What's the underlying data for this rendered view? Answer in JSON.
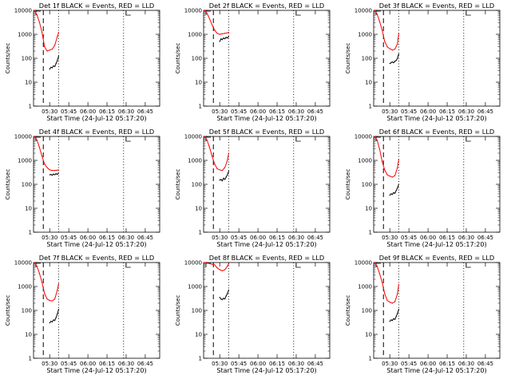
{
  "page": {
    "xlabel": "Start Time (24-Jul-12 05:17:20)",
    "ylabel": "Counts/sec",
    "title_suffix": "BLACK = Events, RED = LLD",
    "xticks": [
      "05:30",
      "05:45",
      "06:00",
      "06:15",
      "06:30",
      "06:45"
    ],
    "yticks": [
      "1",
      "10",
      "100",
      "1000",
      "10000"
    ]
  },
  "colors": {
    "events": "#000000",
    "lld": "#ff0000",
    "axes": "#000000"
  },
  "chart_data": [
    {
      "type": "line",
      "panel": "Det 1f",
      "title": "Det 1f BLACK = Events, RED = LLD",
      "xlabel": "Start Time (24-Jul-12 05:17:20)",
      "ylabel": "Counts/sec",
      "x_ticks": [
        "05:30",
        "05:45",
        "06:00",
        "06:15",
        "06:30",
        "06:45"
      ],
      "y_scale": "log",
      "ylim": [
        1,
        10000
      ],
      "series": [
        {
          "name": "LLD",
          "x": [
            "05:18",
            "05:20",
            "05:22",
            "05:24",
            "05:26",
            "05:28",
            "05:30",
            "05:32",
            "05:34",
            "05:36",
            "05:37"
          ],
          "values": [
            10000,
            6500,
            3200,
            1200,
            300,
            200,
            220,
            240,
            350,
            800,
            1200
          ]
        },
        {
          "name": "Events",
          "x": [
            "05:30",
            "05:31",
            "05:32",
            "05:33",
            "05:34",
            "05:35",
            "05:36",
            "05:37"
          ],
          "values": [
            35,
            42,
            40,
            48,
            45,
            60,
            80,
            120
          ]
        }
      ],
      "dashed_line_x": "05:25",
      "dotted_lines_x": [
        "05:37",
        "06:28"
      ]
    },
    {
      "type": "line",
      "panel": "Det 2f",
      "title": "Det 2f BLACK = Events, RED = LLD",
      "xlabel": "Start Time (24-Jul-12 05:17:20)",
      "ylabel": "Counts/sec",
      "x_ticks": [
        "05:30",
        "05:45",
        "06:00",
        "06:15",
        "06:30",
        "06:45"
      ],
      "y_scale": "log",
      "ylim": [
        1,
        10000
      ],
      "series": [
        {
          "name": "LLD",
          "x": [
            "05:18",
            "05:20",
            "05:22",
            "05:24",
            "05:26",
            "05:28",
            "05:30",
            "05:32",
            "05:34",
            "05:36",
            "05:37"
          ],
          "values": [
            10000,
            7500,
            4500,
            2500,
            1500,
            1100,
            1000,
            1050,
            1100,
            1150,
            1200
          ]
        },
        {
          "name": "Events",
          "x": [
            "05:30",
            "05:31",
            "05:32",
            "05:33",
            "05:34",
            "05:35",
            "05:36",
            "05:37"
          ],
          "values": [
            500,
            650,
            600,
            700,
            650,
            750,
            700,
            800
          ]
        }
      ],
      "dashed_line_x": "05:25",
      "dotted_lines_x": [
        "05:37",
        "06:28"
      ]
    },
    {
      "type": "line",
      "panel": "Det 3f",
      "title": "Det 3f BLACK = Events, RED = LLD",
      "xlabel": "Start Time (24-Jul-12 05:17:20)",
      "ylabel": "Counts/sec",
      "x_ticks": [
        "05:30",
        "05:45",
        "06:00",
        "06:15",
        "06:30",
        "06:45"
      ],
      "y_scale": "log",
      "ylim": [
        1,
        10000
      ],
      "series": [
        {
          "name": "LLD",
          "x": [
            "05:18",
            "05:20",
            "05:22",
            "05:24",
            "05:26",
            "05:28",
            "05:30",
            "05:32",
            "05:34",
            "05:36",
            "05:37"
          ],
          "values": [
            10000,
            7000,
            3500,
            1500,
            500,
            300,
            250,
            220,
            240,
            400,
            1100
          ]
        },
        {
          "name": "Events",
          "x": [
            "05:30",
            "05:31",
            "05:32",
            "05:33",
            "05:34",
            "05:35",
            "05:36",
            "05:37"
          ],
          "values": [
            60,
            65,
            70,
            65,
            75,
            80,
            100,
            150
          ]
        }
      ],
      "dashed_line_x": "05:25",
      "dotted_lines_x": [
        "05:37",
        "06:28"
      ]
    },
    {
      "type": "line",
      "panel": "Det 4f",
      "title": "Det 4f BLACK = Events, RED = LLD",
      "xlabel": "Start Time (24-Jul-12 05:17:20)",
      "ylabel": "Counts/sec",
      "x_ticks": [
        "05:30",
        "05:45",
        "06:00",
        "06:15",
        "06:30",
        "06:45"
      ],
      "y_scale": "log",
      "ylim": [
        1,
        10000
      ],
      "series": [
        {
          "name": "LLD",
          "x": [
            "05:18",
            "05:20",
            "05:22",
            "05:24",
            "05:26",
            "05:28",
            "05:30",
            "05:32",
            "05:34",
            "05:36",
            "05:37"
          ],
          "values": [
            10000,
            7000,
            3500,
            1500,
            700,
            500,
            400,
            380,
            380,
            390,
            400
          ]
        },
        {
          "name": "Events",
          "x": [
            "05:30",
            "05:31",
            "05:32",
            "05:33",
            "05:34",
            "05:35",
            "05:36",
            "05:37"
          ],
          "values": [
            250,
            260,
            240,
            270,
            250,
            280,
            260,
            300
          ]
        }
      ],
      "dashed_line_x": "05:25",
      "dotted_lines_x": [
        "05:37",
        "06:28"
      ]
    },
    {
      "type": "line",
      "panel": "Det 5f",
      "title": "Det 5f BLACK = Events, RED = LLD",
      "xlabel": "Start Time (24-Jul-12 05:17:20)",
      "ylabel": "Counts/sec",
      "x_ticks": [
        "05:30",
        "05:45",
        "06:00",
        "06:15",
        "06:30",
        "06:45"
      ],
      "y_scale": "log",
      "ylim": [
        1,
        10000
      ],
      "series": [
        {
          "name": "LLD",
          "x": [
            "05:18",
            "05:20",
            "05:22",
            "05:24",
            "05:26",
            "05:28",
            "05:30",
            "05:32",
            "05:34",
            "05:36",
            "05:37"
          ],
          "values": [
            10000,
            7000,
            3500,
            1500,
            700,
            450,
            400,
            380,
            500,
            1000,
            2000
          ]
        },
        {
          "name": "Events",
          "x": [
            "05:30",
            "05:31",
            "05:32",
            "05:33",
            "05:34",
            "05:35",
            "05:36",
            "05:37"
          ],
          "values": [
            150,
            160,
            140,
            180,
            160,
            200,
            250,
            350
          ]
        }
      ],
      "dashed_line_x": "05:25",
      "dotted_lines_x": [
        "05:37",
        "06:28"
      ]
    },
    {
      "type": "line",
      "panel": "Det 6f",
      "title": "Det 6f BLACK = Events, RED = LLD",
      "xlabel": "Start Time (24-Jul-12 05:17:20)",
      "ylabel": "Counts/sec",
      "x_ticks": [
        "05:30",
        "05:45",
        "06:00",
        "06:15",
        "06:30",
        "06:45"
      ],
      "y_scale": "log",
      "ylim": [
        1,
        10000
      ],
      "series": [
        {
          "name": "LLD",
          "x": [
            "05:18",
            "05:20",
            "05:22",
            "05:24",
            "05:26",
            "05:28",
            "05:30",
            "05:32",
            "05:34",
            "05:36",
            "05:37"
          ],
          "values": [
            10000,
            7000,
            3000,
            900,
            400,
            250,
            220,
            200,
            230,
            500,
            1100
          ]
        },
        {
          "name": "Events",
          "x": [
            "05:30",
            "05:31",
            "05:32",
            "05:33",
            "05:34",
            "05:35",
            "05:36",
            "05:37"
          ],
          "values": [
            35,
            40,
            38,
            45,
            42,
            55,
            70,
            100
          ]
        }
      ],
      "dashed_line_x": "05:25",
      "dotted_lines_x": [
        "05:37",
        "06:28"
      ]
    },
    {
      "type": "line",
      "panel": "Det 7f",
      "title": "Det 7f BLACK = Events, RED = LLD",
      "xlabel": "Start Time (24-Jul-12 05:17:20)",
      "ylabel": "Counts/sec",
      "x_ticks": [
        "05:30",
        "05:45",
        "06:00",
        "06:15",
        "06:30",
        "06:45"
      ],
      "y_scale": "log",
      "ylim": [
        1,
        10000
      ],
      "series": [
        {
          "name": "LLD",
          "x": [
            "05:18",
            "05:20",
            "05:22",
            "05:24",
            "05:26",
            "05:28",
            "05:30",
            "05:32",
            "05:34",
            "05:36",
            "05:37"
          ],
          "values": [
            10000,
            7000,
            3500,
            1500,
            500,
            300,
            260,
            250,
            300,
            700,
            1300
          ]
        },
        {
          "name": "Events",
          "x": [
            "05:30",
            "05:31",
            "05:32",
            "05:33",
            "05:34",
            "05:35",
            "05:36",
            "05:37"
          ],
          "values": [
            30,
            35,
            33,
            40,
            38,
            50,
            70,
            110
          ]
        }
      ],
      "dashed_line_x": "05:25",
      "dotted_lines_x": [
        "05:37",
        "06:28"
      ]
    },
    {
      "type": "line",
      "panel": "Det 8f",
      "title": "Det 8f BLACK = Events, RED = LLD",
      "xlabel": "Start Time (24-Jul-12 05:17:20)",
      "ylabel": "Counts/sec",
      "x_ticks": [
        "05:30",
        "05:45",
        "06:00",
        "06:15",
        "06:30",
        "06:45"
      ],
      "y_scale": "log",
      "ylim": [
        1,
        10000
      ],
      "series": [
        {
          "name": "LLD",
          "x": [
            "05:18",
            "05:20",
            "05:22",
            "05:24",
            "05:26",
            "05:28",
            "05:30",
            "05:32",
            "05:34",
            "05:36",
            "05:37"
          ],
          "values": [
            10000,
            9500,
            9000,
            8500,
            8000,
            6000,
            5000,
            4500,
            5000,
            7000,
            9000
          ]
        },
        {
          "name": "Events",
          "x": [
            "05:30",
            "05:31",
            "05:32",
            "05:33",
            "05:34",
            "05:35",
            "05:36",
            "05:37"
          ],
          "values": [
            350,
            300,
            280,
            320,
            300,
            400,
            500,
            700
          ]
        }
      ],
      "dashed_line_x": "05:25",
      "dotted_lines_x": [
        "05:37",
        "06:28"
      ]
    },
    {
      "type": "line",
      "panel": "Det 9f",
      "title": "Det 9f BLACK = Events, RED = LLD",
      "xlabel": "Start Time (24-Jul-12 05:17:20)",
      "ylabel": "Counts/sec",
      "x_ticks": [
        "05:30",
        "05:45",
        "06:00",
        "06:15",
        "06:30",
        "06:45"
      ],
      "y_scale": "log",
      "ylim": [
        1,
        10000
      ],
      "series": [
        {
          "name": "LLD",
          "x": [
            "05:18",
            "05:20",
            "05:22",
            "05:24",
            "05:26",
            "05:28",
            "05:30",
            "05:32",
            "05:34",
            "05:36",
            "05:37"
          ],
          "values": [
            10000,
            7000,
            3500,
            1500,
            500,
            260,
            220,
            200,
            230,
            500,
            1200
          ]
        },
        {
          "name": "Events",
          "x": [
            "05:30",
            "05:31",
            "05:32",
            "05:33",
            "05:34",
            "05:35",
            "05:36",
            "05:37"
          ],
          "values": [
            35,
            40,
            38,
            45,
            42,
            55,
            75,
            110
          ]
        }
      ],
      "dashed_line_x": "05:25",
      "dotted_lines_x": [
        "05:37",
        "06:28"
      ]
    }
  ]
}
